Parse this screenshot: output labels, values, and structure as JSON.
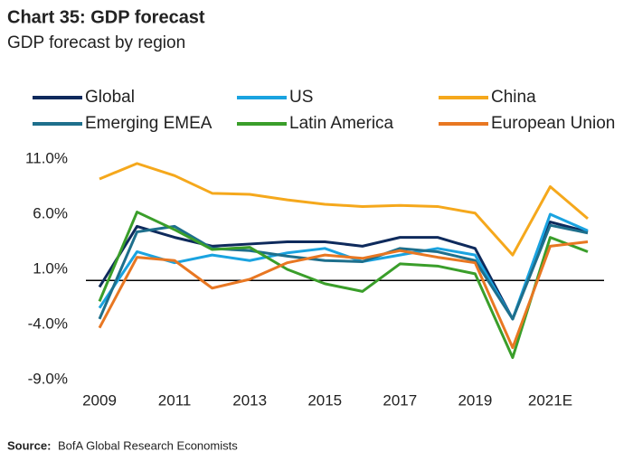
{
  "chart_data": {
    "type": "line",
    "title": "Chart 35: GDP forecast",
    "subtitle": "GDP forecast by region",
    "source_label": "Source:",
    "source_text": "BofA Global Research Economists",
    "x": [
      2009,
      2010,
      2011,
      2012,
      2013,
      2014,
      2015,
      2016,
      2017,
      2018,
      2019,
      2020,
      2021,
      2022
    ],
    "xlim": [
      2009,
      2022
    ],
    "xticks": [
      2009,
      2011,
      2013,
      2015,
      2017,
      2019,
      {
        "value": 2021,
        "label": "2021E"
      }
    ],
    "ylim": [
      -9,
      11
    ],
    "yticks": [
      {
        "value": 11,
        "label": "11.0%"
      },
      {
        "value": 6,
        "label": "6.0%"
      },
      {
        "value": 1,
        "label": "1.0%"
      },
      {
        "value": -4,
        "label": "-4.0%"
      },
      {
        "value": -9,
        "label": "-9.0%"
      }
    ],
    "grid": false,
    "series": [
      {
        "name": "Global",
        "color": "#0e2a5c",
        "values": [
          -0.6,
          4.9,
          3.9,
          3.1,
          3.3,
          3.5,
          3.5,
          3.1,
          3.9,
          3.9,
          2.9,
          -3.5,
          5.3,
          4.4
        ]
      },
      {
        "name": "US",
        "color": "#1aa3e0",
        "values": [
          -2.5,
          2.6,
          1.6,
          2.3,
          1.8,
          2.5,
          2.9,
          1.7,
          2.3,
          2.9,
          2.3,
          -3.5,
          6.0,
          4.5
        ]
      },
      {
        "name": "China",
        "color": "#f5a81c",
        "values": [
          9.2,
          10.6,
          9.5,
          7.9,
          7.8,
          7.3,
          6.9,
          6.7,
          6.8,
          6.7,
          6.1,
          2.3,
          8.5,
          5.6
        ]
      },
      {
        "name": "Emerging EMEA",
        "color": "#1e6f8c",
        "values": [
          -3.5,
          4.4,
          4.9,
          2.9,
          2.7,
          2.2,
          1.8,
          1.7,
          2.9,
          2.6,
          1.8,
          -3.5,
          5.0,
          4.3
        ]
      },
      {
        "name": "Latin America",
        "color": "#3a9e2a",
        "values": [
          -1.9,
          6.2,
          4.6,
          2.8,
          3.0,
          1.0,
          -0.3,
          -1.0,
          1.5,
          1.3,
          0.6,
          -7.0,
          3.9,
          2.6
        ]
      },
      {
        "name": "European Union",
        "color": "#e87722",
        "values": [
          -4.3,
          2.1,
          1.8,
          -0.7,
          0.1,
          1.6,
          2.3,
          2.0,
          2.7,
          2.1,
          1.6,
          -6.1,
          3.1,
          3.5
        ]
      }
    ]
  }
}
